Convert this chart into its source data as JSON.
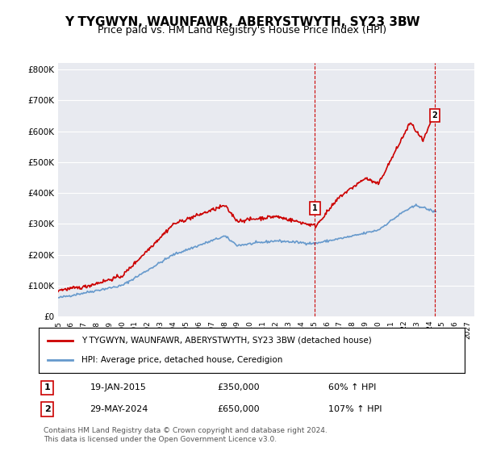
{
  "title": "Y TYGWYN, WAUNFAWR, ABERYSTWYTH, SY23 3BW",
  "subtitle": "Price paid vs. HM Land Registry's House Price Index (HPI)",
  "title_fontsize": 11,
  "subtitle_fontsize": 9,
  "xlabel": "",
  "ylabel": "",
  "ylim": [
    0,
    820000
  ],
  "yticks": [
    0,
    100000,
    200000,
    300000,
    400000,
    500000,
    600000,
    700000,
    800000
  ],
  "ytick_labels": [
    "£0",
    "£100K",
    "£200K",
    "£300K",
    "£400K",
    "£500K",
    "£600K",
    "£700K",
    "£800K"
  ],
  "xlim_start": 1995.0,
  "xlim_end": 2027.5,
  "xtick_years": [
    1995,
    1996,
    1997,
    1998,
    1999,
    2000,
    2001,
    2002,
    2003,
    2004,
    2005,
    2006,
    2007,
    2008,
    2009,
    2010,
    2011,
    2012,
    2013,
    2014,
    2015,
    2016,
    2017,
    2018,
    2019,
    2020,
    2021,
    2022,
    2023,
    2024,
    2025,
    2026,
    2027
  ],
  "background_color": "#ffffff",
  "plot_bg_color": "#e8eaf0",
  "grid_color": "#ffffff",
  "hpi_line_color": "#6699cc",
  "price_line_color": "#cc0000",
  "marker1_x": 2015.05,
  "marker1_y": 350000,
  "marker1_label": "1",
  "marker2_x": 2024.42,
  "marker2_y": 650000,
  "marker2_label": "2",
  "vline1_x": 2015.05,
  "vline2_x": 2024.42,
  "vline_color": "#cc0000",
  "legend_line1": "Y TYGWYN, WAUNFAWR, ABERYSTWYTH, SY23 3BW (detached house)",
  "legend_line2": "HPI: Average price, detached house, Ceredigion",
  "annotation1_num": "1",
  "annotation1_date": "19-JAN-2015",
  "annotation1_price": "£350,000",
  "annotation1_hpi": "60% ↑ HPI",
  "annotation2_num": "2",
  "annotation2_date": "29-MAY-2024",
  "annotation2_price": "£650,000",
  "annotation2_hpi": "107% ↑ HPI",
  "footnote": "Contains HM Land Registry data © Crown copyright and database right 2024.\nThis data is licensed under the Open Government Licence v3.0.",
  "footnote_fontsize": 6.5
}
